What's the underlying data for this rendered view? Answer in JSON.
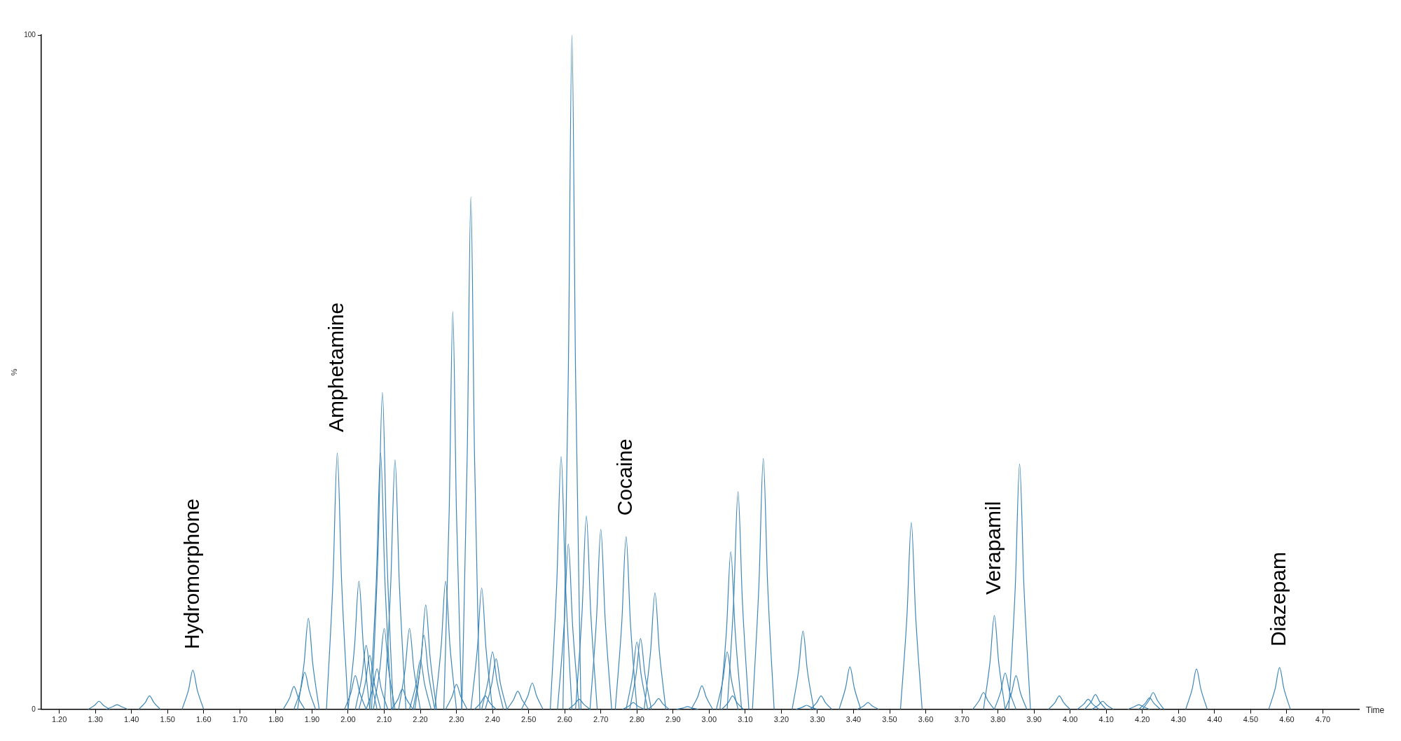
{
  "chart_data": {
    "type": "line",
    "xlabel": "Time",
    "ylabel": "%",
    "xlim": [
      1.15,
      4.8
    ],
    "ylim": [
      0,
      100
    ],
    "xticks": [
      {
        "value": 1.2,
        "label": "1.20"
      },
      {
        "value": 1.3,
        "label": "1.30"
      },
      {
        "value": 1.4,
        "label": "1.40"
      },
      {
        "value": 1.5,
        "label": "1.50"
      },
      {
        "value": 1.6,
        "label": "1.60"
      },
      {
        "value": 1.7,
        "label": "1.70"
      },
      {
        "value": 1.8,
        "label": "1.80"
      },
      {
        "value": 1.9,
        "label": "1.90"
      },
      {
        "value": 2,
        "label": "2.00"
      },
      {
        "value": 2.1,
        "label": "2.10"
      },
      {
        "value": 2.2,
        "label": "2.20"
      },
      {
        "value": 2.3,
        "label": "2.30"
      },
      {
        "value": 2.4,
        "label": "2.40"
      },
      {
        "value": 2.5,
        "label": "2.50"
      },
      {
        "value": 2.6,
        "label": "2.60"
      },
      {
        "value": 2.7,
        "label": "2.70"
      },
      {
        "value": 2.8,
        "label": "2.80"
      },
      {
        "value": 2.9,
        "label": "2.90"
      },
      {
        "value": 3,
        "label": "3.00"
      },
      {
        "value": 3.1,
        "label": "3.10"
      },
      {
        "value": 3.2,
        "label": "3.20"
      },
      {
        "value": 3.3,
        "label": "3.30"
      },
      {
        "value": 3.4,
        "label": "3.40"
      },
      {
        "value": 3.5,
        "label": "3.50"
      },
      {
        "value": 3.6,
        "label": "3.60"
      },
      {
        "value": 3.7,
        "label": "3.70"
      },
      {
        "value": 3.8,
        "label": "3.80"
      },
      {
        "value": 3.9,
        "label": "3.90"
      },
      {
        "value": 4,
        "label": "4.00"
      },
      {
        "value": 4.1,
        "label": "4.10"
      },
      {
        "value": 4.2,
        "label": "4.20"
      },
      {
        "value": 4.3,
        "label": "4.30"
      },
      {
        "value": 4.4,
        "label": "4.40"
      },
      {
        "value": 4.5,
        "label": "4.50"
      },
      {
        "value": 4.6,
        "label": "4.60"
      },
      {
        "value": 4.7,
        "label": "4.70"
      }
    ],
    "yticks": [
      0,
      100
    ],
    "annotations": [
      {
        "text": "Hydromorphone",
        "x": 1.57,
        "y": 5.8
      },
      {
        "text": "Amphetamine",
        "x": 1.97,
        "y": 38
      },
      {
        "text": "Cocaine",
        "x": 2.77,
        "y": 25.6
      },
      {
        "text": "Verapamil",
        "x": 3.79,
        "y": 13.9
      },
      {
        "text": "Diazepam",
        "x": 4.58,
        "y": 6.2
      }
    ],
    "series": [
      {
        "color": "#3d87b8",
        "x": [
          1.28,
          1.298,
          1.31,
          1.322,
          1.34
        ],
        "values": [
          0,
          0.6,
          1.2,
          0.6,
          0
        ]
      },
      {
        "color": "#3d87b8",
        "x": [
          1.33,
          1.348,
          1.36,
          1.372,
          1.39
        ],
        "values": [
          0,
          0.4,
          0.7,
          0.4,
          0
        ]
      },
      {
        "color": "#3d87b8",
        "x": [
          1.42,
          1.438,
          1.45,
          1.462,
          1.48
        ],
        "values": [
          0,
          1,
          2,
          1,
          0
        ]
      },
      {
        "color": "#3d87b8",
        "x": [
          1.54,
          1.558,
          1.57,
          1.582,
          1.6
        ],
        "values": [
          0,
          2.9,
          5.8,
          2.9,
          0
        ]
      },
      {
        "color": "#3d87b8",
        "x": [
          1.82,
          1.838,
          1.85,
          1.862,
          1.88
        ],
        "values": [
          0,
          1.7,
          3.4,
          1.7,
          0
        ]
      },
      {
        "color": "#3d87b8",
        "x": [
          1.85,
          1.868,
          1.88,
          1.892,
          1.91
        ],
        "values": [
          0,
          2.8,
          5.5,
          2.8,
          0
        ]
      },
      {
        "color": "#3d87b8",
        "x": [
          1.86,
          1.878,
          1.89,
          1.902,
          1.92
        ],
        "values": [
          0,
          6.8,
          13.5,
          6.8,
          0
        ]
      },
      {
        "color": "#3d87b8",
        "x": [
          1.94,
          1.958,
          1.97,
          1.982,
          2
        ],
        "values": [
          0,
          19,
          38,
          19,
          0
        ]
      },
      {
        "color": "#3d87b8",
        "x": [
          1.99,
          2.008,
          2.02,
          2.032,
          2.05
        ],
        "values": [
          0,
          2.5,
          5,
          2.5,
          0
        ]
      },
      {
        "color": "#3d87b8",
        "x": [
          2,
          2.018,
          2.03,
          2.042,
          2.06
        ],
        "values": [
          0,
          9.5,
          19,
          9.5,
          0
        ]
      },
      {
        "color": "#3d87b8",
        "x": [
          2.02,
          2.038,
          2.05,
          2.062,
          2.08
        ],
        "values": [
          0,
          4.8,
          9.5,
          4.8,
          0
        ]
      },
      {
        "color": "#3d87b8",
        "x": [
          2.03,
          2.048,
          2.06,
          2.072,
          2.09
        ],
        "values": [
          0,
          4,
          8,
          4,
          0
        ]
      },
      {
        "color": "#3d87b8",
        "x": [
          2.05,
          2.068,
          2.08,
          2.092,
          2.11
        ],
        "values": [
          0,
          3,
          6,
          3,
          0
        ]
      },
      {
        "color": "#3d87b8",
        "x": [
          2.065,
          2.083,
          2.095,
          2.107,
          2.125
        ],
        "values": [
          0,
          23.5,
          47,
          23.5,
          0
        ]
      },
      {
        "color": "#3d87b8",
        "x": [
          2.06,
          2.078,
          2.09,
          2.102,
          2.12
        ],
        "values": [
          0,
          19,
          38,
          19,
          0
        ]
      },
      {
        "color": "#3d87b8",
        "x": [
          2.07,
          2.088,
          2.1,
          2.112,
          2.13
        ],
        "values": [
          0,
          6,
          12,
          6,
          0
        ]
      },
      {
        "color": "#3d87b8",
        "x": [
          2.1,
          2.118,
          2.13,
          2.142,
          2.16
        ],
        "values": [
          0,
          18.5,
          37,
          18.5,
          0
        ]
      },
      {
        "color": "#3d87b8",
        "x": [
          2.12,
          2.138,
          2.15,
          2.162,
          2.18
        ],
        "values": [
          0,
          1.5,
          3,
          1.5,
          0
        ]
      },
      {
        "color": "#3d87b8",
        "x": [
          2.14,
          2.158,
          2.17,
          2.182,
          2.2
        ],
        "values": [
          0,
          6,
          12,
          6,
          0
        ]
      },
      {
        "color": "#3d87b8",
        "x": [
          2.17,
          2.188,
          2.2,
          2.212,
          2.23
        ],
        "values": [
          0,
          3.7,
          7.3,
          3.7,
          0
        ]
      },
      {
        "color": "#3d87b8",
        "x": [
          2.185,
          2.203,
          2.215,
          2.227,
          2.245
        ],
        "values": [
          0,
          7.8,
          15.5,
          7.8,
          0
        ]
      },
      {
        "color": "#3d87b8",
        "x": [
          2.18,
          2.198,
          2.21,
          2.222,
          2.24
        ],
        "values": [
          0,
          5.5,
          11,
          5.5,
          0
        ]
      },
      {
        "color": "#3d87b8",
        "x": [
          2.24,
          2.258,
          2.27,
          2.282,
          2.3
        ],
        "values": [
          0,
          9.5,
          19,
          9.5,
          0
        ]
      },
      {
        "color": "#3d87b8",
        "x": [
          2.265,
          2.28,
          2.29,
          2.3,
          2.315
        ],
        "values": [
          0,
          29.5,
          59,
          29.5,
          0
        ]
      },
      {
        "color": "#3d87b8",
        "x": [
          2.27,
          2.288,
          2.3,
          2.312,
          2.33
        ],
        "values": [
          0,
          1.9,
          3.7,
          1.9,
          0
        ]
      },
      {
        "color": "#3d87b8",
        "x": [
          2.315,
          2.33,
          2.34,
          2.35,
          2.365
        ],
        "values": [
          0,
          38,
          76,
          38,
          0
        ]
      },
      {
        "color": "#3d87b8",
        "x": [
          2.34,
          2.358,
          2.37,
          2.382,
          2.4
        ],
        "values": [
          0,
          9,
          18,
          9,
          0
        ]
      },
      {
        "color": "#3d87b8",
        "x": [
          2.35,
          2.368,
          2.38,
          2.392,
          2.41
        ],
        "values": [
          0,
          1,
          2,
          1,
          0
        ]
      },
      {
        "color": "#3d87b8",
        "x": [
          2.37,
          2.388,
          2.4,
          2.412,
          2.43
        ],
        "values": [
          0,
          4.3,
          8.5,
          4.3,
          0
        ]
      },
      {
        "color": "#3d87b8",
        "x": [
          2.38,
          2.398,
          2.41,
          2.422,
          2.44
        ],
        "values": [
          0,
          3.8,
          7.5,
          3.8,
          0
        ]
      },
      {
        "color": "#3d87b8",
        "x": [
          2.44,
          2.458,
          2.47,
          2.482,
          2.5
        ],
        "values": [
          0,
          1.4,
          2.7,
          1.4,
          0
        ]
      },
      {
        "color": "#3d87b8",
        "x": [
          2.48,
          2.498,
          2.51,
          2.522,
          2.54
        ],
        "values": [
          0,
          2,
          3.9,
          2,
          0
        ]
      },
      {
        "color": "#3d87b8",
        "x": [
          2.56,
          2.578,
          2.59,
          2.602,
          2.62
        ],
        "values": [
          0,
          18.8,
          37.5,
          18.8,
          0
        ]
      },
      {
        "color": "#3d87b8",
        "x": [
          2.58,
          2.598,
          2.61,
          2.622,
          2.64
        ],
        "values": [
          0,
          12.3,
          24.5,
          12.3,
          0
        ]
      },
      {
        "color": "#3d87b8",
        "x": [
          2.595,
          2.61,
          2.62,
          2.63,
          2.645
        ],
        "values": [
          0,
          50,
          100,
          50,
          0
        ]
      },
      {
        "color": "#3d87b8",
        "x": [
          2.61,
          2.628,
          2.64,
          2.652,
          2.67
        ],
        "values": [
          0,
          0.8,
          1.5,
          0.8,
          0
        ]
      },
      {
        "color": "#3d87b8",
        "x": [
          2.63,
          2.648,
          2.66,
          2.672,
          2.69
        ],
        "values": [
          0,
          14.4,
          28.7,
          14.4,
          0
        ]
      },
      {
        "color": "#3d87b8",
        "x": [
          2.67,
          2.688,
          2.7,
          2.712,
          2.73
        ],
        "values": [
          0,
          13.4,
          26.7,
          13.4,
          0
        ]
      },
      {
        "color": "#3d87b8",
        "x": [
          2.74,
          2.758,
          2.77,
          2.782,
          2.8
        ],
        "values": [
          0,
          12.8,
          25.6,
          12.8,
          0
        ]
      },
      {
        "color": "#3d87b8",
        "x": [
          2.77,
          2.788,
          2.8,
          2.812,
          2.83
        ],
        "values": [
          0,
          5,
          10,
          5,
          0
        ]
      },
      {
        "color": "#3d87b8",
        "x": [
          2.78,
          2.798,
          2.81,
          2.822,
          2.84
        ],
        "values": [
          0,
          5.3,
          10.5,
          5.3,
          0
        ]
      },
      {
        "color": "#3d87b8",
        "x": [
          2.76,
          2.778,
          2.79,
          2.802,
          2.82
        ],
        "values": [
          0,
          0.5,
          1,
          0.5,
          0
        ]
      },
      {
        "color": "#3d87b8",
        "x": [
          2.82,
          2.838,
          2.85,
          2.862,
          2.88
        ],
        "values": [
          0,
          8.7,
          17.3,
          8.7,
          0
        ]
      },
      {
        "color": "#3d87b8",
        "x": [
          2.83,
          2.848,
          2.86,
          2.872,
          2.89
        ],
        "values": [
          0,
          0.8,
          1.6,
          0.8,
          0
        ]
      },
      {
        "color": "#3d87b8",
        "x": [
          2.91,
          2.928,
          2.94,
          2.952,
          2.97
        ],
        "values": [
          0,
          0.2,
          0.4,
          0.2,
          0
        ]
      },
      {
        "color": "#3d87b8",
        "x": [
          2.95,
          2.968,
          2.98,
          2.992,
          3.01
        ],
        "values": [
          0,
          1.8,
          3.5,
          1.8,
          0
        ]
      },
      {
        "color": "#3d87b8",
        "x": [
          3.02,
          3.038,
          3.05,
          3.062,
          3.08
        ],
        "values": [
          0,
          4.3,
          8.5,
          4.3,
          0
        ]
      },
      {
        "color": "#3d87b8",
        "x": [
          3.03,
          3.048,
          3.06,
          3.072,
          3.09
        ],
        "values": [
          0,
          11.7,
          23.4,
          11.7,
          0
        ]
      },
      {
        "color": "#3d87b8",
        "x": [
          3.035,
          3.053,
          3.065,
          3.077,
          3.095
        ],
        "values": [
          0,
          1,
          2,
          1,
          0
        ]
      },
      {
        "color": "#3d87b8",
        "x": [
          3.05,
          3.068,
          3.08,
          3.092,
          3.11
        ],
        "values": [
          0,
          16.2,
          32.3,
          16.2,
          0
        ]
      },
      {
        "color": "#3d87b8",
        "x": [
          3.12,
          3.138,
          3.15,
          3.162,
          3.18
        ],
        "values": [
          0,
          18.6,
          37.2,
          18.6,
          0
        ]
      },
      {
        "color": "#3d87b8",
        "x": [
          3.23,
          3.248,
          3.26,
          3.272,
          3.29
        ],
        "values": [
          0,
          5.8,
          11.6,
          5.8,
          0
        ]
      },
      {
        "color": "#3d87b8",
        "x": [
          3.24,
          3.258,
          3.27,
          3.282,
          3.3
        ],
        "values": [
          0,
          0.3,
          0.6,
          0.3,
          0
        ]
      },
      {
        "color": "#3d87b8",
        "x": [
          3.28,
          3.298,
          3.31,
          3.322,
          3.34
        ],
        "values": [
          0,
          1,
          2,
          1,
          0
        ]
      },
      {
        "color": "#3d87b8",
        "x": [
          3.36,
          3.378,
          3.39,
          3.402,
          3.42
        ],
        "values": [
          0,
          3.2,
          6.3,
          3.2,
          0
        ]
      },
      {
        "color": "#3d87b8",
        "x": [
          3.41,
          3.428,
          3.44,
          3.452,
          3.47
        ],
        "values": [
          0,
          0.5,
          1,
          0.5,
          0
        ]
      },
      {
        "color": "#3d87b8",
        "x": [
          3.53,
          3.548,
          3.56,
          3.572,
          3.59
        ],
        "values": [
          0,
          13.9,
          27.7,
          13.9,
          0
        ]
      },
      {
        "color": "#3d87b8",
        "x": [
          3.73,
          3.748,
          3.76,
          3.772,
          3.79
        ],
        "values": [
          0,
          1.3,
          2.5,
          1.3,
          0
        ]
      },
      {
        "color": "#3d87b8",
        "x": [
          3.76,
          3.778,
          3.79,
          3.802,
          3.82
        ],
        "values": [
          0,
          7,
          13.9,
          7,
          0
        ]
      },
      {
        "color": "#3d87b8",
        "x": [
          3.79,
          3.808,
          3.82,
          3.832,
          3.85
        ],
        "values": [
          0,
          2.7,
          5.4,
          2.7,
          0
        ]
      },
      {
        "color": "#3d87b8",
        "x": [
          3.82,
          3.838,
          3.85,
          3.862,
          3.88
        ],
        "values": [
          0,
          2.5,
          5,
          2.5,
          0
        ]
      },
      {
        "color": "#3d87b8",
        "x": [
          3.83,
          3.848,
          3.86,
          3.872,
          3.89
        ],
        "values": [
          0,
          18.2,
          36.4,
          18.2,
          0
        ]
      },
      {
        "color": "#3d87b8",
        "x": [
          3.94,
          3.958,
          3.97,
          3.982,
          4
        ],
        "values": [
          0,
          1,
          2,
          1,
          0
        ]
      },
      {
        "color": "#3d87b8",
        "x": [
          4.02,
          4.038,
          4.05,
          4.062,
          4.08
        ],
        "values": [
          0,
          0.8,
          1.5,
          0.8,
          0
        ]
      },
      {
        "color": "#3d87b8",
        "x": [
          4.04,
          4.058,
          4.07,
          4.082,
          4.1
        ],
        "values": [
          0,
          1.1,
          2.2,
          1.1,
          0
        ]
      },
      {
        "color": "#3d87b8",
        "x": [
          4.06,
          4.078,
          4.09,
          4.102,
          4.12
        ],
        "values": [
          0,
          0.6,
          1.2,
          0.6,
          0
        ]
      },
      {
        "color": "#3d87b8",
        "x": [
          4.16,
          4.178,
          4.19,
          4.202,
          4.22
        ],
        "values": [
          0,
          0.4,
          0.7,
          0.4,
          0
        ]
      },
      {
        "color": "#3d87b8",
        "x": [
          4.19,
          4.208,
          4.22,
          4.232,
          4.25
        ],
        "values": [
          0,
          0.9,
          1.7,
          0.9,
          0
        ]
      },
      {
        "color": "#3d87b8",
        "x": [
          4.2,
          4.218,
          4.23,
          4.242,
          4.26
        ],
        "values": [
          0,
          1.3,
          2.5,
          1.3,
          0
        ]
      },
      {
        "color": "#3d87b8",
        "x": [
          4.32,
          4.338,
          4.35,
          4.362,
          4.38
        ],
        "values": [
          0,
          3,
          6,
          3,
          0
        ]
      },
      {
        "color": "#3d87b8",
        "x": [
          4.55,
          4.568,
          4.58,
          4.592,
          4.61
        ],
        "values": [
          0,
          3.1,
          6.2,
          3.1,
          0
        ]
      }
    ]
  }
}
